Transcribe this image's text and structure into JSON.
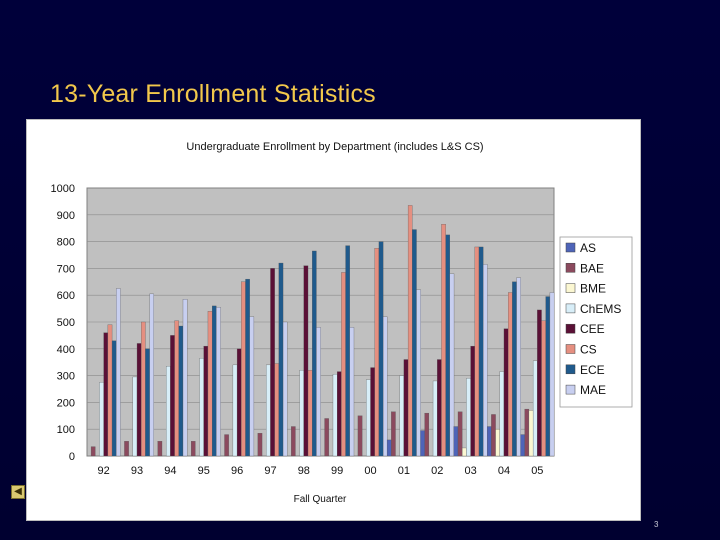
{
  "slide": {
    "title": "13-Year Enrollment Statistics",
    "page_number": "3"
  },
  "nav": {
    "prev_icon": "◀"
  },
  "chart_data": {
    "type": "bar",
    "title": "Undergraduate Enrollment by Department (includes L&S CS)",
    "xlabel": "Fall Quarter",
    "ylabel": "",
    "ylim": [
      0,
      1000
    ],
    "yticks": [
      0,
      100,
      200,
      300,
      400,
      500,
      600,
      700,
      800,
      900,
      1000
    ],
    "grid": true,
    "legend_position": "right",
    "categories": [
      "92",
      "93",
      "94",
      "95",
      "96",
      "97",
      "98",
      "99",
      "00",
      "01",
      "02",
      "03",
      "04",
      "05"
    ],
    "series": [
      {
        "name": "AS",
        "color": "#4e64b8",
        "values": [
          0,
          0,
          0,
          0,
          0,
          0,
          0,
          0,
          0,
          60,
          95,
          110,
          110,
          80
        ]
      },
      {
        "name": "BAE",
        "color": "#8b4a5e",
        "values": [
          35,
          55,
          55,
          55,
          80,
          85,
          110,
          140,
          150,
          165,
          160,
          165,
          155,
          175
        ]
      },
      {
        "name": "BME",
        "color": "#fbf7d2",
        "values": [
          0,
          0,
          0,
          0,
          0,
          0,
          0,
          0,
          0,
          0,
          0,
          30,
          100,
          170
        ]
      },
      {
        "name": "ChEMS",
        "color": "#d8eef8",
        "values": [
          275,
          295,
          335,
          365,
          340,
          340,
          320,
          305,
          285,
          300,
          280,
          290,
          315,
          355
        ]
      },
      {
        "name": "CEE",
        "color": "#5a1036",
        "values": [
          460,
          420,
          450,
          410,
          400,
          700,
          710,
          315,
          330,
          360,
          360,
          410,
          475,
          545
        ]
      },
      {
        "name": "CS",
        "color": "#e58f80",
        "values": [
          490,
          500,
          505,
          540,
          650,
          345,
          320,
          685,
          775,
          935,
          865,
          780,
          610,
          505
        ]
      },
      {
        "name": "ECE",
        "color": "#1f5a8c",
        "values": [
          430,
          400,
          485,
          560,
          660,
          720,
          765,
          785,
          800,
          845,
          825,
          780,
          650,
          595
        ]
      },
      {
        "name": "MAE",
        "color": "#c8cff0",
        "values": [
          625,
          605,
          585,
          555,
          520,
          500,
          480,
          480,
          520,
          620,
          680,
          715,
          665,
          610
        ]
      }
    ]
  }
}
